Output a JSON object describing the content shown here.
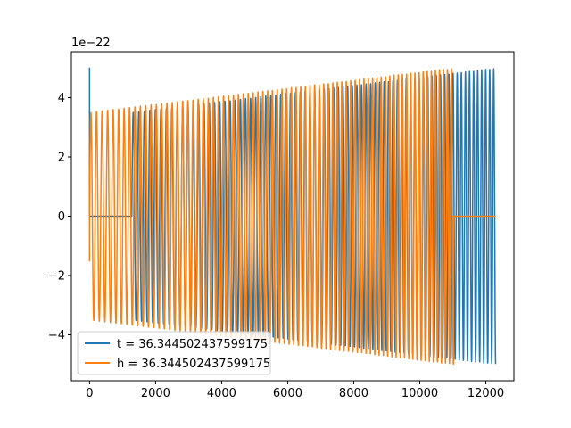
{
  "chart_data": {
    "type": "line",
    "title": "",
    "xlabel": "",
    "ylabel": "",
    "y_offset_text": "1e−22",
    "xlim": [
      -550,
      12850
    ],
    "ylim": [
      -5.55,
      5.55
    ],
    "x_ticks": [
      0,
      2000,
      4000,
      6000,
      8000,
      10000,
      12000
    ],
    "x_tick_labels": [
      "0",
      "2000",
      "4000",
      "6000",
      "8000",
      "10000",
      "12000"
    ],
    "y_ticks": [
      -4,
      -2,
      0,
      2,
      4
    ],
    "y_tick_labels": [
      "−4",
      "−2",
      "0",
      "2",
      "4"
    ],
    "grid": false,
    "legend_position": "lower-left",
    "series": [
      {
        "name": "t = 36.344502437599175",
        "color": "#1f77b4",
        "spike": {
          "x": 0,
          "y": 5.0
        },
        "zero_segment": [
          0,
          1280
        ],
        "oscillation": {
          "x_start": 1280,
          "x_end": 12300,
          "amp_start": 3.5,
          "amp_end": 5.0,
          "period_start": 170,
          "period_end": 120
        }
      },
      {
        "name": "h = 36.344502437599175",
        "color": "#ff7f0e",
        "spike": {
          "x": 0,
          "y": -1.5
        },
        "oscillation": {
          "x_start": 0,
          "x_end": 11020,
          "amp_start": 3.5,
          "amp_end": 5.0,
          "period_start": 170,
          "period_end": 120
        },
        "zero_segment": [
          11020,
          12300
        ]
      }
    ]
  }
}
